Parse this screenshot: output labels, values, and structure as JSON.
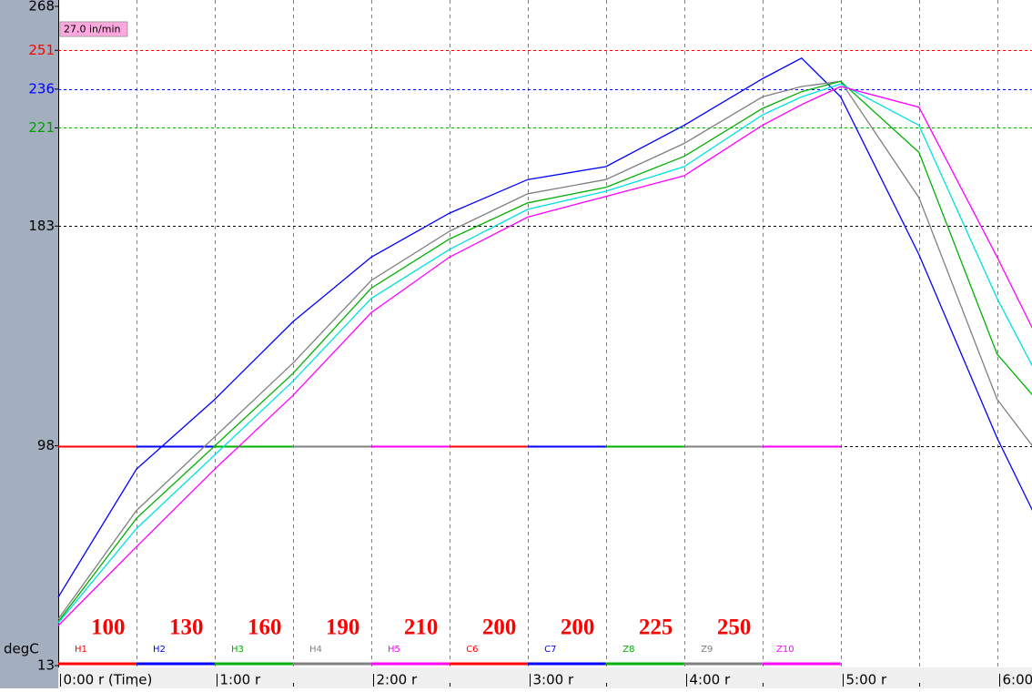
{
  "chart_data": {
    "type": "line",
    "badge": "27.0 in/min",
    "ylabel": "degC",
    "ylim": [
      13,
      268
    ],
    "yticks": [
      13,
      98,
      183,
      221,
      236,
      251,
      268
    ],
    "ytick_colors": [
      "#000000",
      "#000000",
      "#000000",
      "#00a000",
      "#0000ff",
      "#ff0000",
      "#000000"
    ],
    "reference_lines": [
      {
        "value": 251,
        "color": "#ff0000"
      },
      {
        "value": 236,
        "color": "#0000ff"
      },
      {
        "value": 221,
        "color": "#00b000"
      },
      {
        "value": 183,
        "color": "#000000"
      },
      {
        "value": 98,
        "color": "#000000"
      }
    ],
    "xlim": [
      0,
      373
    ],
    "xticks": [
      {
        "value": 0,
        "label": "0:00 r (Time)"
      },
      {
        "value": 60,
        "label": "1:00 r"
      },
      {
        "value": 120,
        "label": "2:00 r"
      },
      {
        "value": 180,
        "label": "3:00 r"
      },
      {
        "value": 240,
        "label": "4:00 r"
      },
      {
        "value": 300,
        "label": "5:00 r"
      },
      {
        "value": 360,
        "label": "6:00 r"
      }
    ],
    "xminor_ticks": [
      30,
      90,
      150,
      210,
      270,
      330
    ],
    "grid": true,
    "x": [
      0,
      30,
      60,
      90,
      120,
      150,
      180,
      210,
      240,
      270,
      285,
      300,
      330,
      360,
      375
    ],
    "series": [
      {
        "color": "#0000ff",
        "values": [
          39.5,
          89,
          116,
          146,
          171,
          188,
          201,
          206,
          222,
          240,
          248,
          233,
          172,
          101,
          70
        ]
      },
      {
        "color": "#808080",
        "values": [
          31,
          73,
          101.5,
          130,
          162,
          181,
          195.5,
          201,
          215,
          233,
          237,
          239,
          194,
          116,
          96
        ]
      },
      {
        "color": "#00b000",
        "values": [
          30,
          70,
          98,
          126,
          159,
          178,
          192,
          198,
          210,
          228.5,
          235,
          239,
          211.5,
          133.5,
          116
        ]
      },
      {
        "color": "#00e0e0",
        "values": [
          29.5,
          66,
          94.5,
          123,
          155,
          174,
          189.5,
          196.5,
          206,
          226,
          233,
          238,
          222,
          155,
          126
        ]
      },
      {
        "color": "#ff00ff",
        "values": [
          28.5,
          59,
          89,
          117.5,
          149.5,
          171,
          186.5,
          194.5,
          202.5,
          222,
          230,
          237,
          229,
          171,
          140.5
        ]
      }
    ],
    "zone_line": 98,
    "zones": [
      {
        "label": "H1",
        "setpoint": "100",
        "color": "#ff0000",
        "span": [
          0,
          30
        ]
      },
      {
        "label": "H2",
        "setpoint": "130",
        "color": "#0000ff",
        "span": [
          30,
          60
        ]
      },
      {
        "label": "H3",
        "setpoint": "160",
        "color": "#00b000",
        "span": [
          60,
          90
        ]
      },
      {
        "label": "H4",
        "setpoint": "190",
        "color": "#808080",
        "span": [
          90,
          120
        ]
      },
      {
        "label": "H5",
        "setpoint": "210",
        "color": "#ff00ff",
        "span": [
          120,
          150
        ]
      },
      {
        "label": "C6",
        "setpoint": "200",
        "color": "#ff0000",
        "span": [
          150,
          180
        ]
      },
      {
        "label": "C7",
        "setpoint": "200",
        "color": "#0000ff",
        "span": [
          180,
          210
        ]
      },
      {
        "label": "Z8",
        "setpoint": "225",
        "color": "#00b000",
        "span": [
          210,
          240
        ]
      },
      {
        "label": "Z9",
        "setpoint": "250",
        "color": "#808080",
        "span": [
          240,
          270
        ]
      },
      {
        "label": "Z10",
        "setpoint": "",
        "color": "#ff00ff",
        "span": [
          270,
          300
        ]
      }
    ]
  }
}
